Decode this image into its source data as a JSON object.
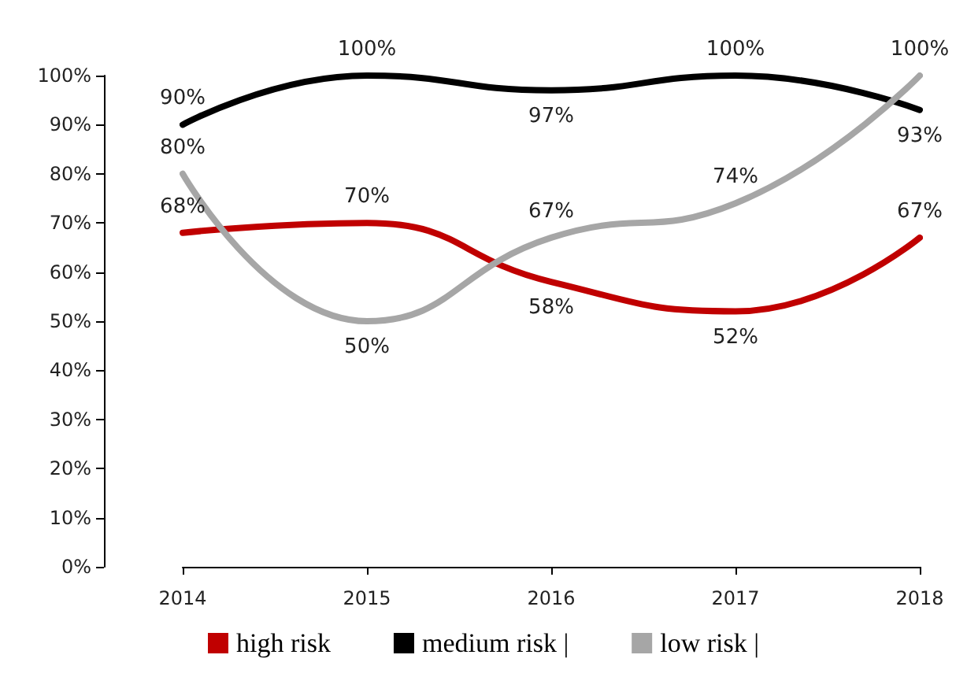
{
  "chart_data": {
    "type": "line",
    "categories": [
      "2014",
      "2015",
      "2016",
      "2017",
      "2018"
    ],
    "series": [
      {
        "name": "high risk",
        "color": "#c00000",
        "values": [
          68,
          70,
          58,
          52,
          67
        ],
        "value_labels": [
          "68%",
          "70%",
          "58%",
          "52%",
          "67%"
        ]
      },
      {
        "name": "medium risk |",
        "color": "#000000",
        "values": [
          90,
          100,
          97,
          100,
          93
        ],
        "value_labels": [
          "90%",
          "100%",
          "97%",
          "100%",
          "93%"
        ]
      },
      {
        "name": "low risk |",
        "color": "#a6a6a6",
        "values": [
          80,
          50,
          67,
          74,
          100
        ],
        "value_labels": [
          "80%",
          "50%",
          "67%",
          "74%",
          "100%"
        ]
      }
    ],
    "ylim": [
      0,
      100
    ],
    "yticks": [
      {
        "value": 0,
        "label": "0%"
      },
      {
        "value": 10,
        "label": "10%"
      },
      {
        "value": 20,
        "label": "20%"
      },
      {
        "value": 30,
        "label": "30%"
      },
      {
        "value": 40,
        "label": "40%"
      },
      {
        "value": 50,
        "label": "50%"
      },
      {
        "value": 60,
        "label": "60%"
      },
      {
        "value": 70,
        "label": "70%"
      },
      {
        "value": 80,
        "label": "80%"
      },
      {
        "value": 90,
        "label": "90%"
      },
      {
        "value": 100,
        "label": "100%"
      }
    ],
    "grid": false,
    "legend": "bottom",
    "marker": "none",
    "line_style": "solid"
  }
}
